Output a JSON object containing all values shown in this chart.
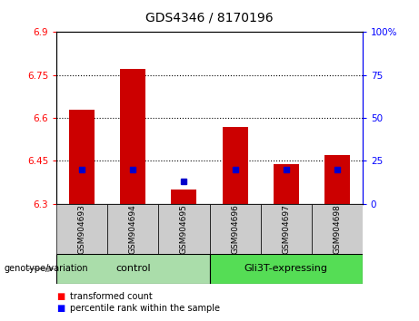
{
  "title": "GDS4346 / 8170196",
  "samples": [
    "GSM904693",
    "GSM904694",
    "GSM904695",
    "GSM904696",
    "GSM904697",
    "GSM904698"
  ],
  "transformed_count": [
    6.63,
    6.77,
    6.35,
    6.57,
    6.44,
    6.47
  ],
  "percentile_rank": [
    20,
    20,
    13,
    20,
    20,
    20
  ],
  "y_min": 6.3,
  "y_max": 6.9,
  "y_ticks": [
    6.3,
    6.45,
    6.6,
    6.75,
    6.9
  ],
  "y_tick_labels": [
    "6.3",
    "6.45",
    "6.6",
    "6.75",
    "6.9"
  ],
  "right_y_ticks": [
    0,
    25,
    50,
    75,
    100
  ],
  "right_y_labels": [
    "0",
    "25",
    "50",
    "75",
    "100%"
  ],
  "bar_color": "#cc0000",
  "percentile_color": "#0000cc",
  "bar_width": 0.5,
  "control_color": "#aaddaa",
  "gli3t_color": "#55dd55",
  "sample_bg_color": "#cccccc",
  "legend_red_label": "transformed count",
  "legend_blue_label": "percentile rank within the sample",
  "genotype_label": "genotype/variation",
  "control_label": "control",
  "gli3t_label": "Gli3T-expressing",
  "grid_lines": [
    6.45,
    6.6,
    6.75
  ],
  "title_fontsize": 10,
  "tick_fontsize": 7.5,
  "label_fontsize": 7.5
}
